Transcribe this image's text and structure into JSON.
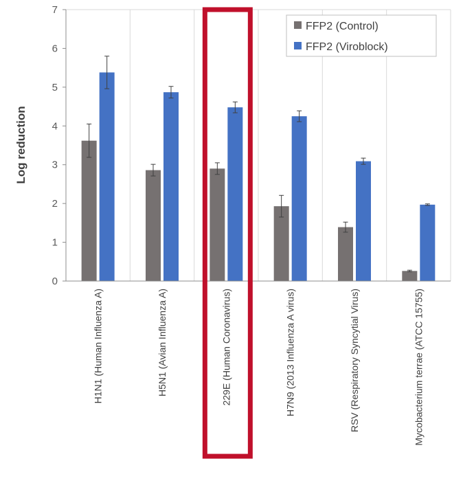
{
  "chart_data": {
    "type": "bar",
    "ylabel": "Log reduction",
    "ylim": [
      0,
      7
    ],
    "yticks": [
      "0",
      "1",
      "2",
      "3",
      "4",
      "5",
      "6",
      "7"
    ],
    "categories": [
      "H1N1 (Human Influenza A)",
      "H5N1 (Avian Influenza A)",
      "229E (Human Coronavirus)",
      "H7N9 (2013 Influenza A virus)",
      "RSV (Respiratory Syncytial Virus)",
      "Mycobacterium terrae (ATCC 15755)"
    ],
    "series": [
      {
        "name": "FFP2 (Control)",
        "color": "#767171",
        "values": [
          3.62,
          2.86,
          2.9,
          1.93,
          1.39,
          0.26
        ],
        "errors": [
          0.43,
          0.15,
          0.15,
          0.28,
          0.13,
          0.02
        ]
      },
      {
        "name": "FFP2 (Viroblock)",
        "color": "#4472c4",
        "values": [
          5.38,
          4.87,
          4.48,
          4.25,
          3.09,
          1.97
        ],
        "errors": [
          0.42,
          0.15,
          0.14,
          0.14,
          0.08,
          0.02
        ]
      }
    ],
    "legend": "top-right",
    "grid": true,
    "highlight": {
      "category_index": 2,
      "color": "#c0102b"
    }
  }
}
